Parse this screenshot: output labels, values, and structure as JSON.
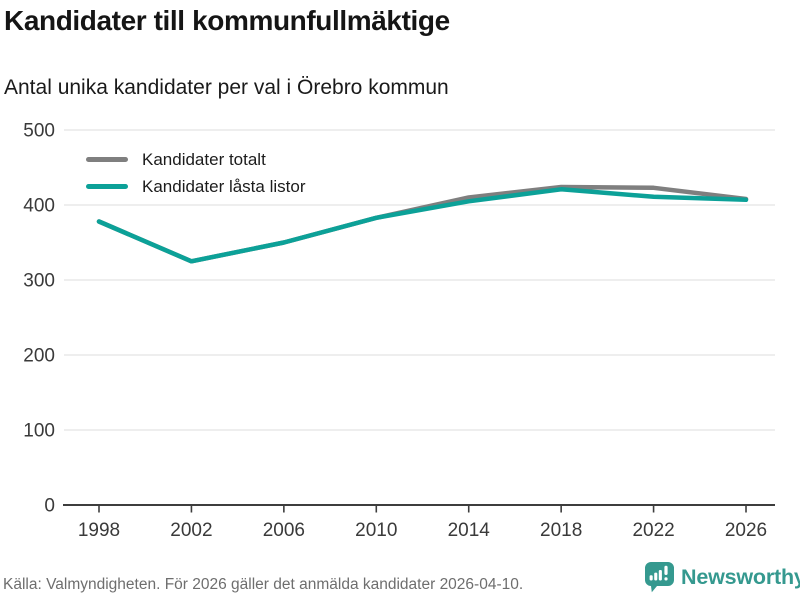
{
  "header": {
    "title": "Kandidater till kommunfullmäktige",
    "subtitle": "Antal unika kandidater per val i Örebro kommun"
  },
  "chart_data": {
    "type": "line",
    "x": [
      1998,
      2002,
      2006,
      2010,
      2014,
      2018,
      2022,
      2026
    ],
    "series": [
      {
        "name": "Kandidater totalt",
        "color": "#7f7f7f",
        "values": [
          378,
          325,
          350,
          383,
          410,
          424,
          423,
          408
        ]
      },
      {
        "name": "Kandidater låsta listor",
        "color": "#0ca198",
        "values": [
          378,
          325,
          350,
          383,
          405,
          421,
          411,
          407
        ]
      }
    ],
    "ylim": [
      0,
      500
    ],
    "yticks": [
      0,
      100,
      200,
      300,
      400,
      500
    ],
    "xlabel": "",
    "ylabel": "",
    "grid": "horizontal",
    "legend_position": "top-left"
  },
  "footer": {
    "source": "Källa: Valmyndigheten. För 2026 gäller det anmälda kandidater 2026-04-10.",
    "brand": "Newsworthy"
  },
  "colors": {
    "accent_teal": "#0ca198",
    "series_gray": "#7f7f7f",
    "logo_teal": "#35998f",
    "grid_line": "#e4e4e4",
    "axis_line": "#3d3d3d",
    "tick_label": "#3a3a3a"
  }
}
